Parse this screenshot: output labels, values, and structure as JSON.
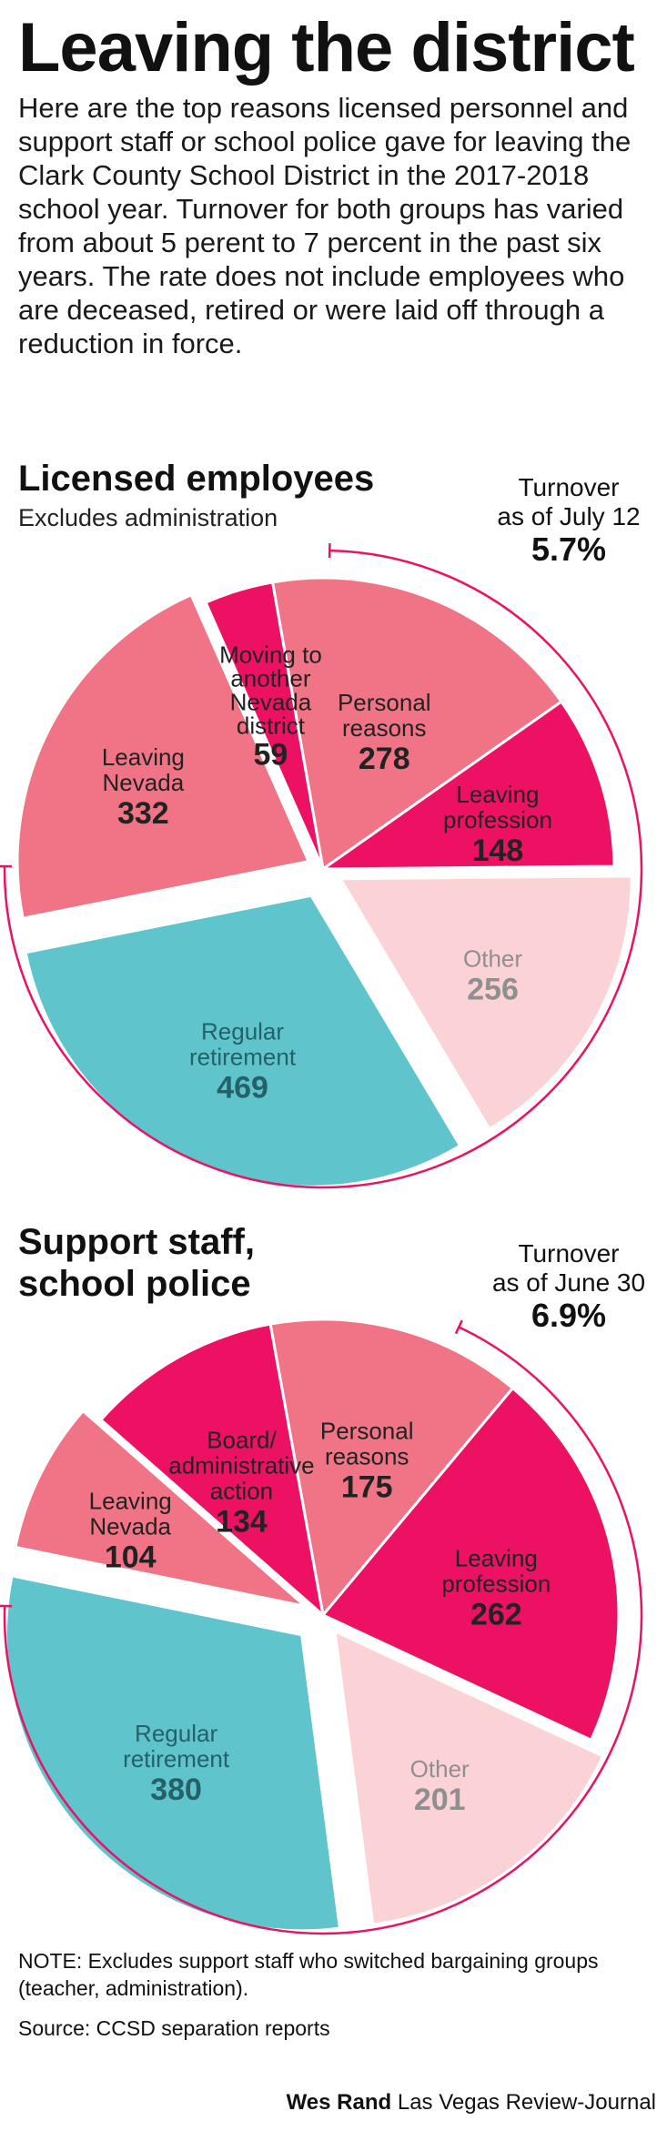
{
  "header": {
    "title": "Leaving the district",
    "intro": "Here are the top reasons licensed personnel and support staff or school police gave for leaving the Clark County School District in the 2017-2018 school year. Turnover for both groups has varied from about 5 perent to 7 percent in the past six years. The rate does not include employees who are deceased, retired or were laid off through a reduction in force."
  },
  "sections": [
    {
      "title_lines": [
        "Licensed employees"
      ],
      "subtitle": "Excludes administration",
      "turnover_label_lines": [
        "Turnover",
        "as of July 12"
      ],
      "turnover_value": "5.7%"
    },
    {
      "title_lines": [
        "Support staff,",
        "school police"
      ],
      "subtitle": "",
      "turnover_label_lines": [
        "Turnover",
        "as of June 30"
      ],
      "turnover_value": "6.9%"
    }
  ],
  "chart_data": [
    {
      "type": "pie",
      "title": "Licensed employees",
      "slices": [
        {
          "label_lines": [
            "Personal",
            "reasons"
          ],
          "value": 278,
          "color": "#f07485"
        },
        {
          "label_lines": [
            "Leaving",
            "profession"
          ],
          "value": 148,
          "color": "#ec1162"
        },
        {
          "label_lines": [
            "Other"
          ],
          "value": 256,
          "color": "#fbd3d6"
        },
        {
          "label_lines": [
            "Regular",
            "retirement"
          ],
          "value": 469,
          "color": "#5fc4cc"
        },
        {
          "label_lines": [
            "Leaving",
            "Nevada"
          ],
          "value": 332,
          "color": "#f07485"
        },
        {
          "label_lines": [
            "Moving to",
            "another",
            "Nevada",
            "district"
          ],
          "value": 59,
          "color": "#ec1162"
        }
      ]
    },
    {
      "type": "pie",
      "title": "Support staff, school police",
      "slices": [
        {
          "label_lines": [
            "Personal",
            "reasons"
          ],
          "value": 175,
          "color": "#f07485"
        },
        {
          "label_lines": [
            "Leaving",
            "profession"
          ],
          "value": 262,
          "color": "#ec1162"
        },
        {
          "label_lines": [
            "Other"
          ],
          "value": 201,
          "color": "#fbd3d6"
        },
        {
          "label_lines": [
            "Regular",
            "retirement"
          ],
          "value": 380,
          "color": "#5fc4cc"
        },
        {
          "label_lines": [
            "Leaving",
            "Nevada"
          ],
          "value": 104,
          "color": "#f07485"
        },
        {
          "label_lines": [
            "Board/",
            "administrative",
            "action"
          ],
          "value": 134,
          "color": "#ec1162"
        }
      ]
    }
  ],
  "footer": {
    "note": "NOTE: Excludes support staff who switched bargaining groups (teacher, administration).",
    "source": "Source: CCSD separation reports",
    "credit_name": "Wes Rand",
    "credit_org": "Las Vegas Review-Journal"
  }
}
